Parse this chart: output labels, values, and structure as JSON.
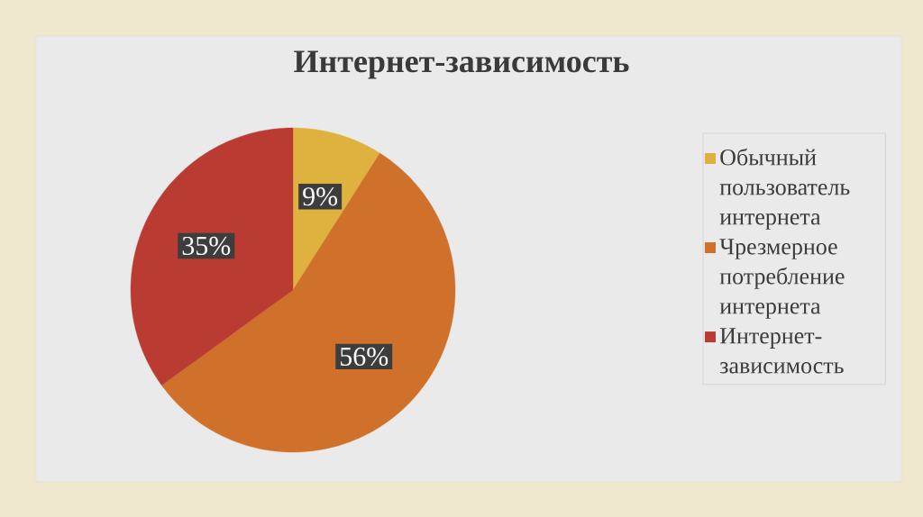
{
  "chart_data": {
    "type": "pie",
    "title": "Интернет-зависимость",
    "categories": [
      "Обычный пользователь интернета",
      "Чрезмерное потребление интернета",
      "Интернет-зависимость"
    ],
    "values": [
      9,
      56,
      35
    ],
    "colors": [
      "#dfb23f",
      "#d0712b",
      "#b93b31"
    ],
    "value_labels": [
      "9%",
      "56%",
      "35%"
    ],
    "legend": "right"
  }
}
